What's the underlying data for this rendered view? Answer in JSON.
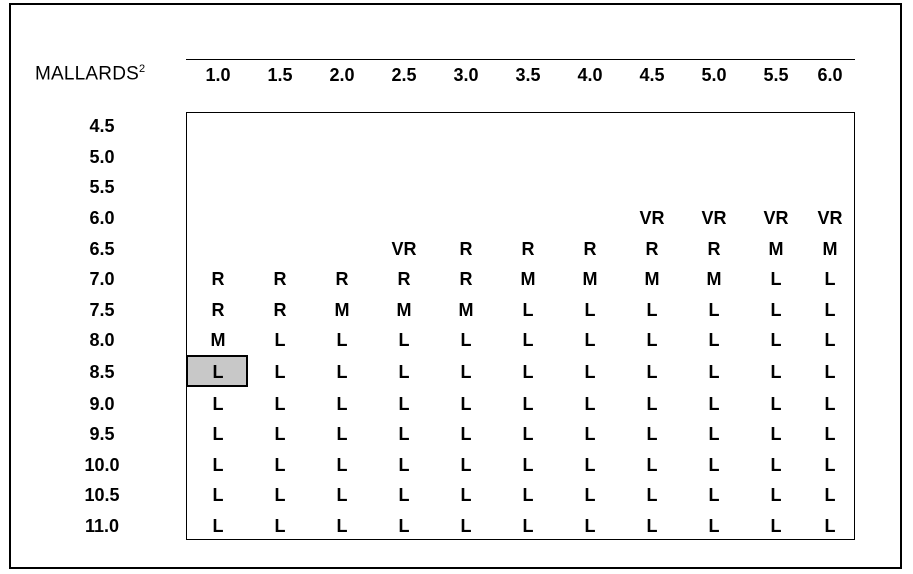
{
  "header_label": "MALLARDS",
  "header_sup": "2",
  "columns": [
    "1.0",
    "1.5",
    "2.0",
    "2.5",
    "3.0",
    "3.5",
    "4.0",
    "4.5",
    "5.0",
    "5.5",
    "6.0"
  ],
  "rows": [
    {
      "label": "4.5",
      "cells": [
        "",
        "",
        "",
        "",
        "",
        "",
        "",
        "",
        "",
        "",
        ""
      ]
    },
    {
      "label": "5.0",
      "cells": [
        "",
        "",
        "",
        "",
        "",
        "",
        "",
        "",
        "",
        "",
        ""
      ]
    },
    {
      "label": "5.5",
      "cells": [
        "",
        "",
        "",
        "",
        "",
        "",
        "",
        "",
        "",
        "",
        ""
      ]
    },
    {
      "label": "6.0",
      "cells": [
        "",
        "",
        "",
        "",
        "",
        "",
        "",
        "VR",
        "VR",
        "VR",
        "VR"
      ]
    },
    {
      "label": "6.5",
      "cells": [
        "",
        "",
        "",
        "VR",
        "R",
        "R",
        "R",
        "R",
        "R",
        "M",
        "M"
      ]
    },
    {
      "label": "7.0",
      "cells": [
        "R",
        "R",
        "R",
        "R",
        "R",
        "M",
        "M",
        "M",
        "M",
        "L",
        "L"
      ]
    },
    {
      "label": "7.5",
      "cells": [
        "R",
        "R",
        "M",
        "M",
        "M",
        "L",
        "L",
        "L",
        "L",
        "L",
        "L"
      ]
    },
    {
      "label": "8.0",
      "cells": [
        "M",
        "L",
        "L",
        "L",
        "L",
        "L",
        "L",
        "L",
        "L",
        "L",
        "L"
      ]
    },
    {
      "label": "8.5",
      "cells": [
        "L",
        "L",
        "L",
        "L",
        "L",
        "L",
        "L",
        "L",
        "L",
        "L",
        "L"
      ]
    },
    {
      "label": "9.0",
      "cells": [
        "L",
        "L",
        "L",
        "L",
        "L",
        "L",
        "L",
        "L",
        "L",
        "L",
        "L"
      ]
    },
    {
      "label": "9.5",
      "cells": [
        "L",
        "L",
        "L",
        "L",
        "L",
        "L",
        "L",
        "L",
        "L",
        "L",
        "L"
      ]
    },
    {
      "label": "10.0",
      "cells": [
        "L",
        "L",
        "L",
        "L",
        "L",
        "L",
        "L",
        "L",
        "L",
        "L",
        "L"
      ]
    },
    {
      "label": "10.5",
      "cells": [
        "L",
        "L",
        "L",
        "L",
        "L",
        "L",
        "L",
        "L",
        "L",
        "L",
        "L"
      ]
    },
    {
      "label": "11.0",
      "cells": [
        "L",
        "L",
        "L",
        "L",
        "L",
        "L",
        "L",
        "L",
        "L",
        "L",
        "L"
      ]
    }
  ],
  "highlighted_cell": {
    "row": 8,
    "col": 0
  }
}
